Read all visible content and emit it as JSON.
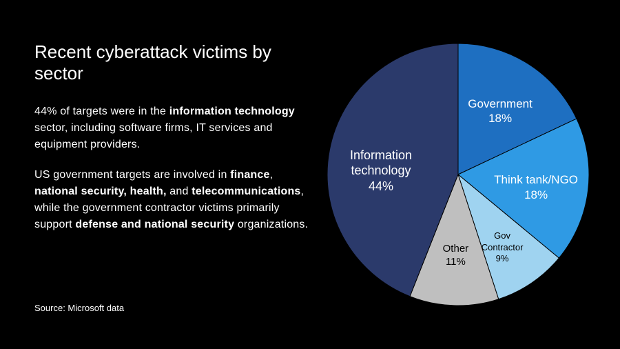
{
  "title": "Recent cyberattack victims by sector",
  "paragraphs": {
    "p1_prefix": "44% of targets were in the ",
    "p1_bold1": "information technology",
    "p1_suffix": " sector, including software firms, IT services and equipment providers.",
    "p2_prefix": "US government targets are involved in ",
    "p2_bold1": "finance",
    "p2_sep1": ", ",
    "p2_bold2": "national security, health,",
    "p2_sep2": " and ",
    "p2_bold3": "telecommunications",
    "p2_mid": ", while the government contractor victims primarily support ",
    "p2_bold4": "defense and national security",
    "p2_suffix": " organizations."
  },
  "source": "Source: Microsoft data",
  "chart": {
    "type": "pie",
    "background_color": "#000000",
    "radius": 190,
    "start_angle_deg": -90,
    "slices": [
      {
        "label": "Government",
        "percent": 18,
        "color": "#1e6fc1",
        "text_color": "#ffffff",
        "font_size": 17
      },
      {
        "label": "Think tank/NGO",
        "percent": 18,
        "color": "#2f9ae4",
        "text_color": "#ffffff",
        "font_size": 17
      },
      {
        "label": "Gov Contractor",
        "percent": 9,
        "color": "#9fd3f0",
        "text_color": "#000000",
        "font_size": 13
      },
      {
        "label": "Other",
        "percent": 11,
        "color": "#bfbfbf",
        "text_color": "#000000",
        "font_size": 15
      },
      {
        "label": "Information technology",
        "percent": 44,
        "color": "#2b3a6b",
        "text_color": "#ffffff",
        "font_size": 18
      }
    ],
    "label_radius_factor": 0.6,
    "stroke_color": "#000000",
    "stroke_width": 1
  }
}
